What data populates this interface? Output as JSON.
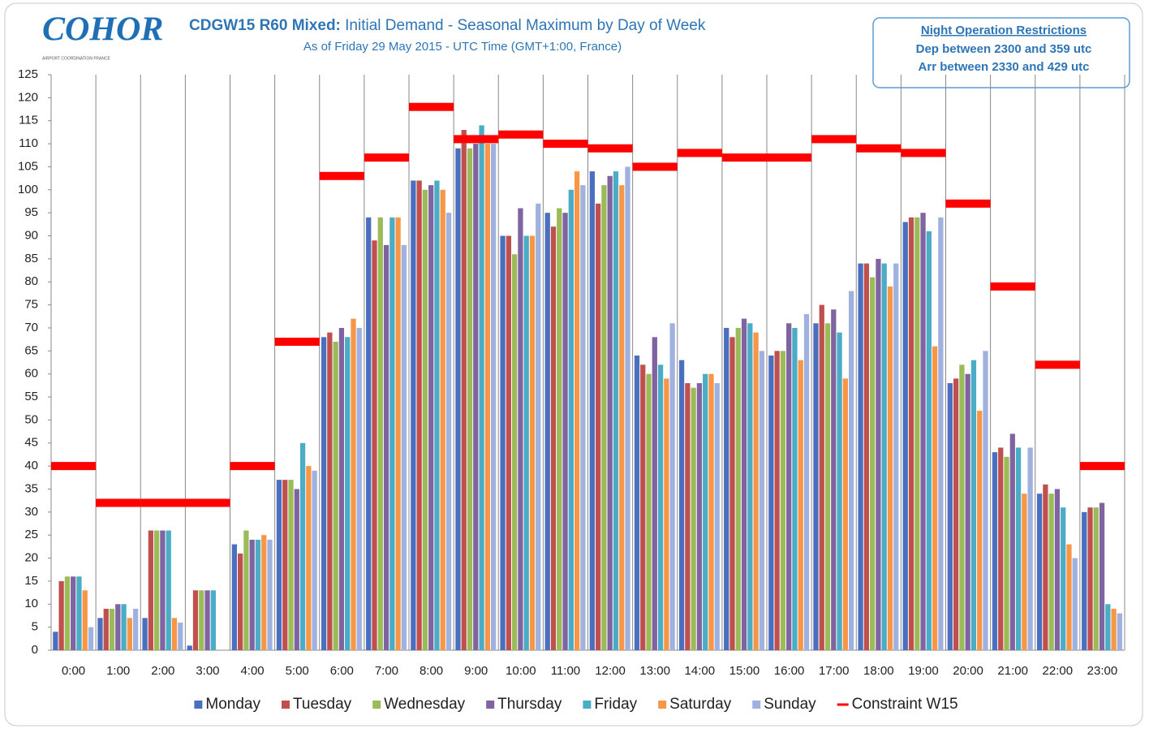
{
  "logo": {
    "text": "COHOR",
    "subtext": "AIRPORT COORDINATION FRANCE"
  },
  "note": {
    "title": "Night Operation Restrictions",
    "lines": [
      "Dep between 2300 and 359 utc",
      "Arr between 2330 and 429 utc"
    ]
  },
  "chart_data": {
    "type": "bar",
    "title": "CDGW15 R60 Mixed:",
    "title_rest": "Initial Demand - Seasonal Maximum by Day of Week",
    "subtitle": "As of Friday 29 May 2015 - UTC Time (GMT+1:00, France)",
    "categories": [
      "0:00",
      "1:00",
      "2:00",
      "3:00",
      "4:00",
      "5:00",
      "6:00",
      "7:00",
      "8:00",
      "9:00",
      "10:00",
      "11:00",
      "12:00",
      "13:00",
      "14:00",
      "15:00",
      "16:00",
      "17:00",
      "18:00",
      "19:00",
      "20:00",
      "21:00",
      "22:00",
      "23:00"
    ],
    "series": [
      {
        "name": "Monday",
        "color": "#4a6fbe",
        "values": [
          4,
          7,
          7,
          1,
          23,
          37,
          68,
          94,
          102,
          109,
          90,
          95,
          104,
          64,
          63,
          70,
          64,
          71,
          84,
          93,
          58,
          43,
          34,
          30
        ]
      },
      {
        "name": "Tuesday",
        "color": "#c0504d",
        "values": [
          15,
          9,
          26,
          13,
          21,
          37,
          69,
          89,
          102,
          113,
          90,
          92,
          97,
          62,
          58,
          68,
          65,
          75,
          84,
          94,
          59,
          44,
          36,
          31
        ]
      },
      {
        "name": "Wednesday",
        "color": "#9bbb59",
        "values": [
          16,
          9,
          26,
          13,
          26,
          37,
          67,
          94,
          100,
          109,
          86,
          96,
          101,
          60,
          57,
          70,
          65,
          71,
          81,
          94,
          62,
          42,
          34,
          31
        ]
      },
      {
        "name": "Thursday",
        "color": "#8064a2",
        "values": [
          16,
          10,
          26,
          13,
          24,
          35,
          70,
          88,
          101,
          110,
          96,
          95,
          103,
          68,
          58,
          72,
          71,
          74,
          85,
          95,
          60,
          47,
          35,
          32
        ]
      },
      {
        "name": "Friday",
        "color": "#4bacc6",
        "values": [
          16,
          10,
          26,
          13,
          24,
          45,
          68,
          94,
          102,
          114,
          90,
          100,
          104,
          62,
          60,
          71,
          70,
          69,
          84,
          91,
          63,
          44,
          31,
          10
        ]
      },
      {
        "name": "Saturday",
        "color": "#f79646",
        "values": [
          13,
          7,
          7,
          0,
          25,
          40,
          72,
          94,
          100,
          110,
          90,
          104,
          101,
          59,
          60,
          69,
          63,
          59,
          79,
          66,
          52,
          34,
          23,
          9
        ]
      },
      {
        "name": "Sunday",
        "color": "#9fb1de",
        "values": [
          5,
          9,
          6,
          0,
          24,
          39,
          70,
          88,
          95,
          110,
          97,
          101,
          105,
          71,
          58,
          65,
          73,
          78,
          84,
          94,
          65,
          44,
          20,
          8
        ]
      },
      {
        "name": "Constraint W15",
        "color": "#ff0000",
        "type": "step",
        "values": [
          40,
          32,
          32,
          32,
          40,
          67,
          103,
          107,
          118,
          111,
          112,
          110,
          109,
          105,
          108,
          107,
          107,
          111,
          109,
          108,
          97,
          79,
          62,
          40
        ]
      }
    ],
    "ylim": [
      0,
      125
    ],
    "yticks": [
      0,
      5,
      10,
      15,
      20,
      25,
      30,
      35,
      40,
      45,
      50,
      55,
      60,
      65,
      70,
      75,
      80,
      85,
      90,
      95,
      100,
      105,
      110,
      115,
      120,
      125
    ],
    "grid": false
  }
}
